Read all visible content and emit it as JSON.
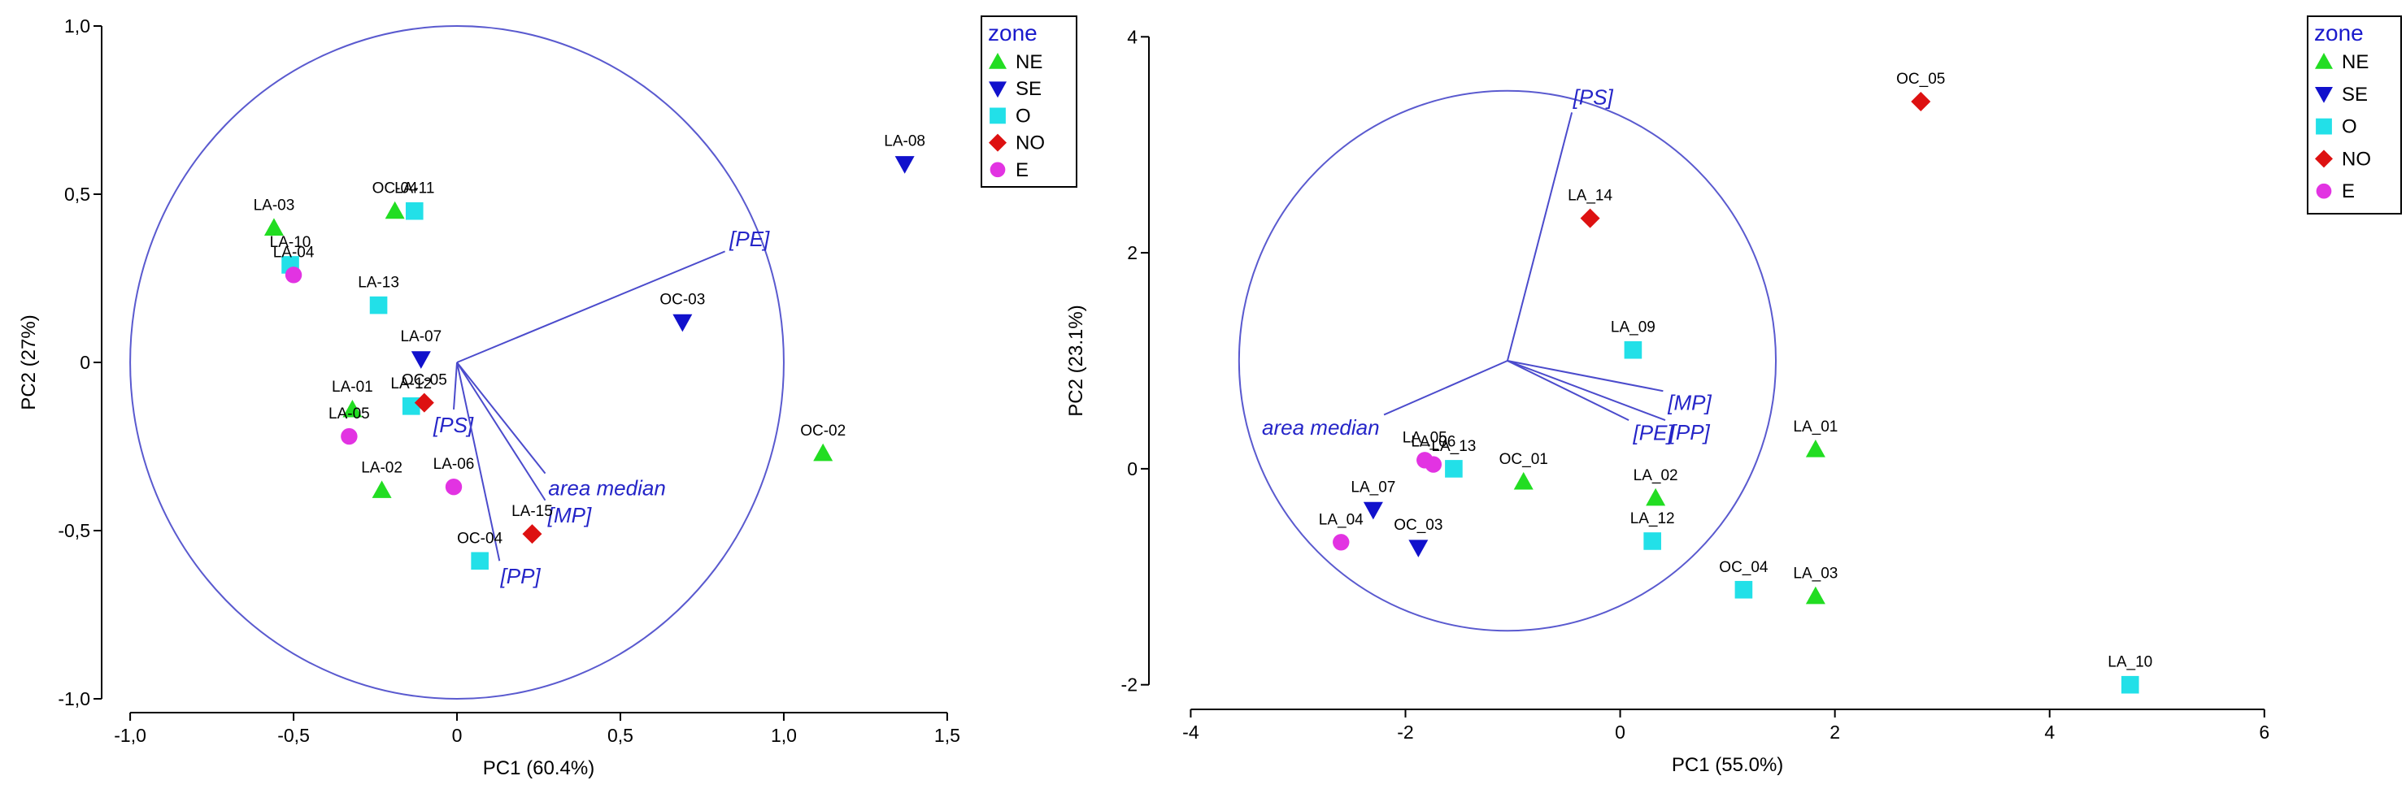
{
  "colors": {
    "NE": "#22dd22",
    "SE": "#1111cc",
    "O": "#22e0e8",
    "NO": "#dd1111",
    "E": "#e233e2",
    "vector": "#4b4bcc",
    "vector_label": "#2525c8",
    "legend_title": "#1a1acc"
  },
  "chart_data": [
    {
      "type": "scatter",
      "subtype": "pca-biplot",
      "title": "",
      "xlabel": "PC1 (60.4%)",
      "ylabel": "PC2 (27%)",
      "xlim": [
        -1.05,
        1.55
      ],
      "ylim": [
        -1.0,
        1.0
      ],
      "xticks": [
        -1.0,
        -0.5,
        0,
        0.5,
        1.0,
        1.5
      ],
      "xtick_labels": [
        "-1,0",
        "-0,5",
        "0",
        "0,5",
        "1,0",
        "1,5"
      ],
      "yticks": [
        -1.0,
        -0.5,
        0,
        0.5,
        1.0
      ],
      "ytick_labels": [
        "-1,0",
        "-0,5",
        "0",
        "0,5",
        "1,0"
      ],
      "correlation_circle": {
        "center": [
          0,
          0
        ],
        "radius": 1.0
      },
      "legend": {
        "title": "zone",
        "position": "top-right",
        "entries": [
          {
            "zone": "NE",
            "marker": "triangle-up",
            "label": "NE"
          },
          {
            "zone": "SE",
            "marker": "triangle-down",
            "label": "SE"
          },
          {
            "zone": "O",
            "marker": "square",
            "label": "O"
          },
          {
            "zone": "NO",
            "marker": "diamond",
            "label": "NO"
          },
          {
            "zone": "E",
            "marker": "circle",
            "label": "E"
          }
        ]
      },
      "vectors": [
        {
          "label": "[PE]",
          "x": 0.82,
          "y": 0.33
        },
        {
          "label": "[PS]",
          "x": -0.01,
          "y": -0.14
        },
        {
          "label": "area median",
          "x": 0.27,
          "y": -0.33
        },
        {
          "label": "[MP]",
          "x": 0.27,
          "y": -0.41
        },
        {
          "label": "[PP]",
          "x": 0.13,
          "y": -0.59
        }
      ],
      "points": [
        {
          "label": "LA-08",
          "zone": "SE",
          "x": 1.37,
          "y": 0.59
        },
        {
          "label": "OC-03",
          "zone": "SE",
          "x": 0.69,
          "y": 0.12
        },
        {
          "label": "LA-07",
          "zone": "SE",
          "x": -0.11,
          "y": 0.01
        },
        {
          "label": "OC-02",
          "zone": "NE",
          "x": 1.12,
          "y": -0.27
        },
        {
          "label": "LA-03",
          "zone": "NE",
          "x": -0.56,
          "y": 0.4
        },
        {
          "label": "OC-04",
          "zone": "NE",
          "x": -0.19,
          "y": 0.45
        },
        {
          "label": "LA-01",
          "zone": "NE",
          "x": -0.32,
          "y": -0.14
        },
        {
          "label": "LA-02",
          "zone": "NE",
          "x": -0.23,
          "y": -0.38
        },
        {
          "label": "LA-11",
          "zone": "O",
          "x": -0.13,
          "y": 0.45
        },
        {
          "label": "LA-10",
          "zone": "O",
          "x": -0.51,
          "y": 0.29
        },
        {
          "label": "LA-13",
          "zone": "O",
          "x": -0.24,
          "y": 0.17
        },
        {
          "label": "LA-12",
          "zone": "O",
          "x": -0.14,
          "y": -0.13
        },
        {
          "label": "OC-04",
          "zone": "O",
          "x": 0.07,
          "y": -0.59
        },
        {
          "label": "OC-05",
          "zone": "NO",
          "x": -0.1,
          "y": -0.12
        },
        {
          "label": "LA-15",
          "zone": "NO",
          "x": 0.23,
          "y": -0.51
        },
        {
          "label": "LA-04",
          "zone": "E",
          "x": -0.5,
          "y": 0.26
        },
        {
          "label": "LA-05",
          "zone": "E",
          "x": -0.33,
          "y": -0.22
        },
        {
          "label": "LA-06",
          "zone": "E",
          "x": -0.01,
          "y": -0.37
        }
      ]
    },
    {
      "type": "scatter",
      "subtype": "pca-biplot",
      "title": "",
      "xlabel": "PC1 (55.0%)",
      "ylabel": "PC2 (23.1%)",
      "xlim": [
        -4.2,
        6.1
      ],
      "ylim": [
        -2.1,
        4.1
      ],
      "xticks": [
        -4,
        -2,
        0,
        2,
        4,
        6
      ],
      "xtick_labels": [
        "-4",
        "-2",
        "0",
        "2",
        "4",
        "6"
      ],
      "yticks": [
        -2,
        0,
        2,
        4
      ],
      "ytick_labels": [
        "-2",
        "0",
        "2",
        "4"
      ],
      "correlation_circle": {
        "center": [
          -1.05,
          1.0
        ],
        "radius": 2.5
      },
      "legend": {
        "title": "zone",
        "position": "top-right",
        "entries": [
          {
            "zone": "NE",
            "marker": "triangle-up",
            "label": "NE"
          },
          {
            "zone": "SE",
            "marker": "triangle-down",
            "label": "SE"
          },
          {
            "zone": "O",
            "marker": "square",
            "label": "O"
          },
          {
            "zone": "NO",
            "marker": "diamond",
            "label": "NO"
          },
          {
            "zone": "E",
            "marker": "circle",
            "label": "E"
          }
        ]
      },
      "vectors": [
        {
          "label": "[PS]",
          "x": -0.45,
          "y": 3.3
        },
        {
          "label": "[MP]",
          "x": 0.4,
          "y": 0.72
        },
        {
          "label": "[PE]",
          "x": 0.08,
          "y": 0.45
        },
        {
          "label": "[PP]",
          "x": 0.42,
          "y": 0.45
        },
        {
          "label": "area median",
          "x": -2.2,
          "y": 0.5
        }
      ],
      "points": [
        {
          "label": "OC_05",
          "zone": "NO",
          "x": 2.8,
          "y": 3.4
        },
        {
          "label": "LA_14",
          "zone": "NO",
          "x": -0.28,
          "y": 2.32
        },
        {
          "label": "LA_09",
          "zone": "O",
          "x": 0.12,
          "y": 1.1
        },
        {
          "label": "LA_01",
          "zone": "NE",
          "x": 1.82,
          "y": 0.18
        },
        {
          "label": "OC_01",
          "zone": "NE",
          "x": -0.9,
          "y": -0.12
        },
        {
          "label": "LA_02",
          "zone": "NE",
          "x": 0.33,
          "y": -0.27
        },
        {
          "label": "LA_12",
          "zone": "O",
          "x": 0.3,
          "y": -0.67
        },
        {
          "label": "OC_04",
          "zone": "O",
          "x": 1.15,
          "y": -1.12
        },
        {
          "label": "LA_03",
          "zone": "NE",
          "x": 1.82,
          "y": -1.18
        },
        {
          "label": "LA_10",
          "zone": "O",
          "x": 4.75,
          "y": -2.0
        },
        {
          "label": "LA_05",
          "zone": "E",
          "x": -1.82,
          "y": 0.08
        },
        {
          "label": "LA_06",
          "zone": "E",
          "x": -1.74,
          "y": 0.04
        },
        {
          "label": "LA_13",
          "zone": "O",
          "x": -1.55,
          "y": 0.0
        },
        {
          "label": "LA_07",
          "zone": "SE",
          "x": -2.3,
          "y": -0.38
        },
        {
          "label": "OC_03",
          "zone": "SE",
          "x": -1.88,
          "y": -0.73
        },
        {
          "label": "LA_04",
          "zone": "E",
          "x": -2.6,
          "y": -0.68
        }
      ]
    }
  ]
}
